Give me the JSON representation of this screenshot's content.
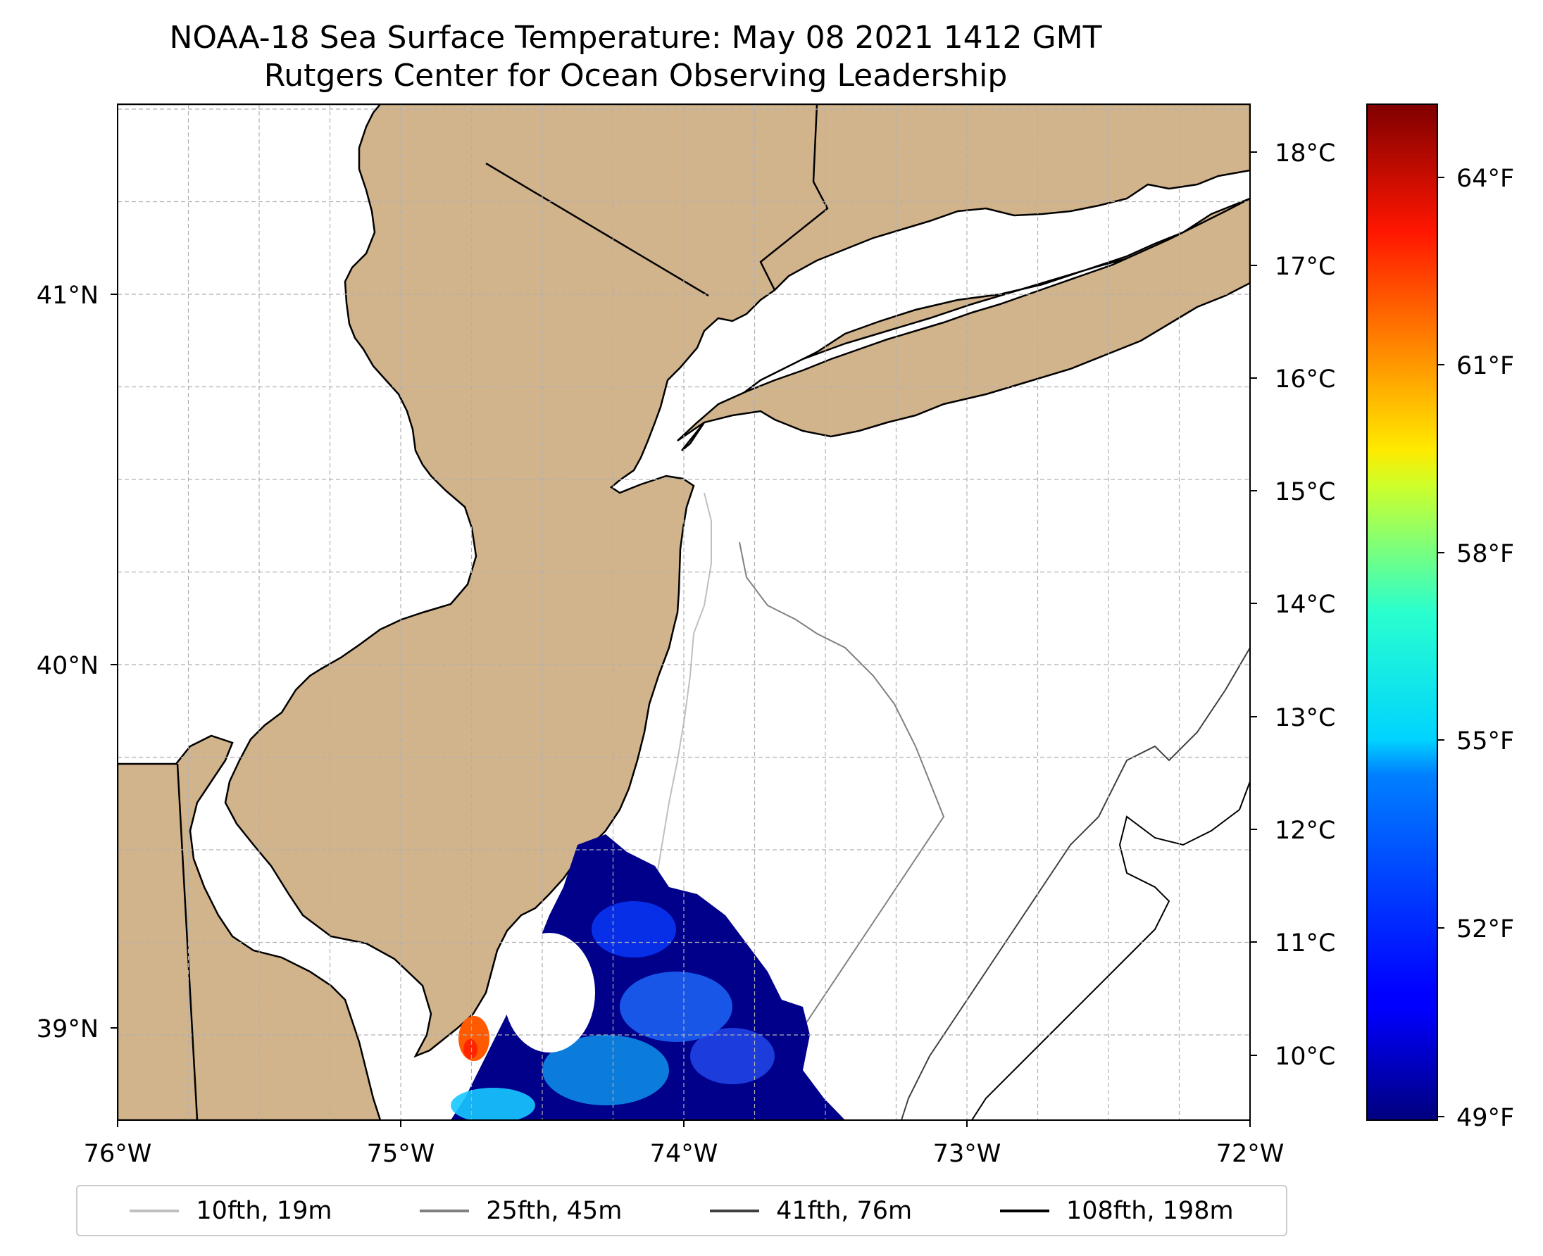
{
  "title": "NOAA-18 Sea Surface Temperature: May 08 2021 1412 GMT",
  "subtitle": "Rutgers Center for Ocean Observing Leadership",
  "map": {
    "lon_range": [
      -76,
      -72
    ],
    "lat_range": [
      38.75,
      41.5
    ],
    "x_ticks": [
      "76°W",
      "75°W",
      "74°W",
      "73°W",
      "72°W"
    ],
    "y_ticks": [
      "39°N",
      "40°N",
      "41°N"
    ],
    "land_color": "#D2B48C",
    "grid": true
  },
  "colorbar": {
    "colormap": "jet",
    "celsius_ticks": [
      "18°C",
      "17°C",
      "16°C",
      "15°C",
      "14°C",
      "13°C",
      "12°C",
      "11°C",
      "10°C"
    ],
    "fahrenheit_ticks": [
      "64°F",
      "61°F",
      "58°F",
      "55°F",
      "52°F",
      "49°F"
    ],
    "range_f": [
      49,
      65
    ]
  },
  "legend": [
    {
      "label": "10fth, 19m",
      "color": "#bfbfbf"
    },
    {
      "label": "25fth, 45m",
      "color": "#808080"
    },
    {
      "label": "41fth, 76m",
      "color": "#404040"
    },
    {
      "label": "108fth, 198m",
      "color": "#000000"
    }
  ]
}
